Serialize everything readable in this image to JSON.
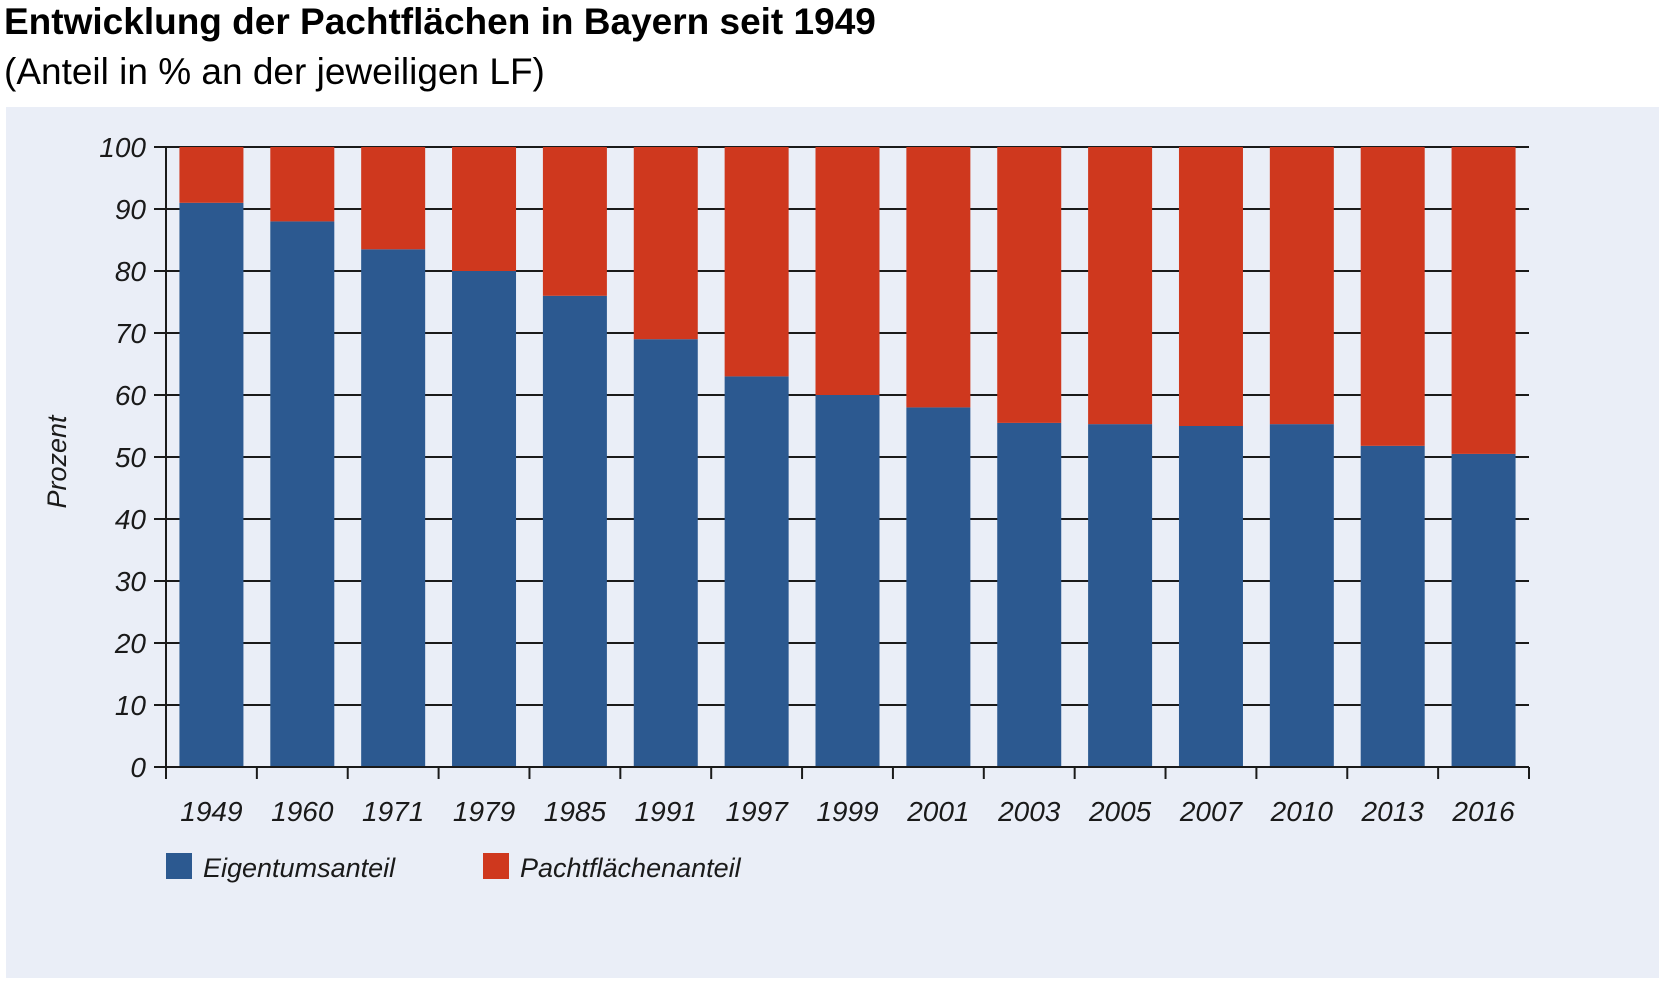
{
  "title": "Entwicklung der Pachtflächen in Bayern seit 1949",
  "subtitle": "(Anteil in % an der jeweiligen LF)",
  "colors": {
    "background": "#eaeef7",
    "eigentum": "#2c5990",
    "pacht": "#cf381e",
    "axis": "#1a1a1a"
  },
  "chart_data": {
    "type": "bar",
    "stacked": true,
    "categories": [
      "1949",
      "1960",
      "1971",
      "1979",
      "1985",
      "1991",
      "1997",
      "1999",
      "2001",
      "2003",
      "2005",
      "2007",
      "2010",
      "2013",
      "2016"
    ],
    "series": [
      {
        "name": "Eigentumsanteil",
        "color": "#2c5990",
        "values": [
          91,
          88,
          83.5,
          80,
          76,
          69,
          63,
          60,
          58,
          55.5,
          55.3,
          55,
          55.3,
          51.8,
          50.5
        ]
      },
      {
        "name": "Pachtflächenanteil",
        "color": "#cf381e",
        "values": [
          9,
          12,
          16.5,
          20,
          24,
          31,
          37,
          40,
          42,
          44.5,
          44.7,
          45,
          44.7,
          48.2,
          49.5
        ]
      }
    ],
    "ylabel": "Prozent",
    "xlabel": "",
    "ylim": [
      0,
      100
    ],
    "yticks": [
      "0",
      "10",
      "20",
      "30",
      "40",
      "50",
      "60",
      "70",
      "80",
      "90",
      "100"
    ],
    "grid": true,
    "legend_position": "bottom-left"
  }
}
